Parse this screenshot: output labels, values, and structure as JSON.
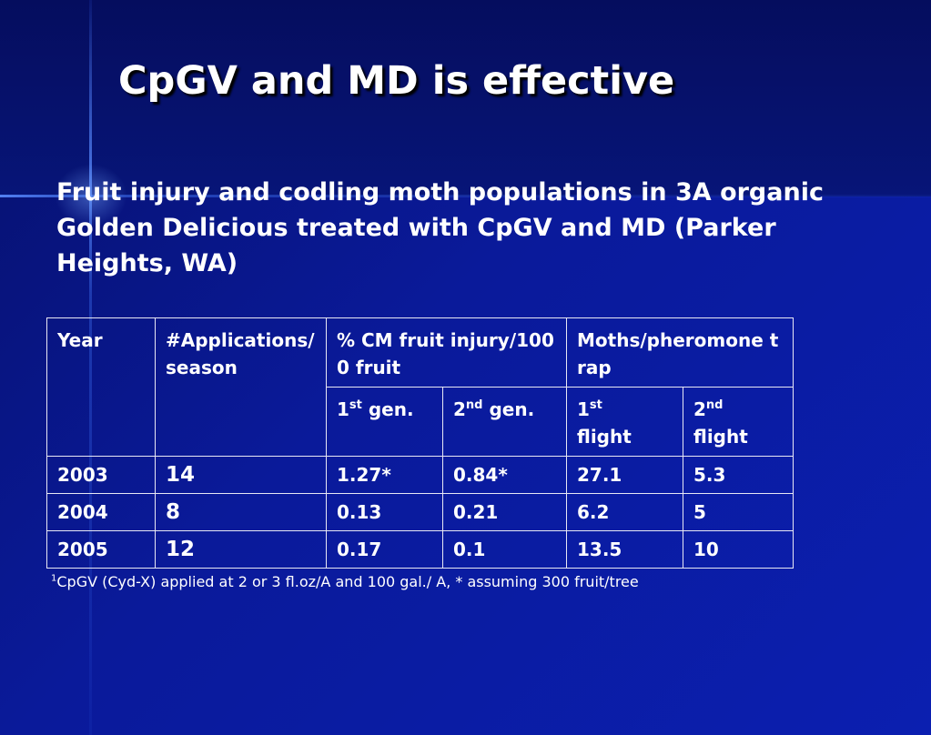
{
  "slide": {
    "title": "CpGV and MD is effective",
    "subtitle": "Fruit injury and codling moth populations in 3A organic Golden Delicious treated with CpGV and MD (Parker Heights, WA)"
  },
  "table": {
    "headers": {
      "year": "Year",
      "applications": "#Applications/season",
      "injury": "% CM fruit injury/1000 fruit",
      "moths": "Moths/pheromone trap"
    },
    "subheaders": {
      "gen1_num": "1",
      "gen1_sup": "st",
      "gen1_text": "gen.",
      "gen2_num": "2",
      "gen2_sup": "nd",
      "gen2_text": "gen.",
      "flight1_num": "1",
      "flight1_sup": "st",
      "flight1_text": "flight",
      "flight2_num": "2",
      "flight2_sup": "nd",
      "flight2_text": "flight"
    },
    "rows": [
      {
        "year": "2003",
        "applications": "14",
        "gen1": "1.27*",
        "gen2": "0.84*",
        "flight1": "27.1",
        "flight2": "5.3"
      },
      {
        "year": "2004",
        "applications": "8",
        "gen1": "0.13",
        "gen2": "0.21",
        "flight1": "6.2",
        "flight2": "5"
      },
      {
        "year": "2005",
        "applications": "12",
        "gen1": "0.17",
        "gen2": "0.1",
        "flight1": "13.5",
        "flight2": "10"
      }
    ]
  },
  "footnote": {
    "marker": "1",
    "text": "CpGV (Cyd-X) applied at 2 or 3 fl.oz/A and 100 gal./ A, * assuming 300 fruit/tree"
  },
  "colors": {
    "background": "#0a1a9a",
    "text": "#ffffff",
    "table_border": "#e8e8f4"
  }
}
